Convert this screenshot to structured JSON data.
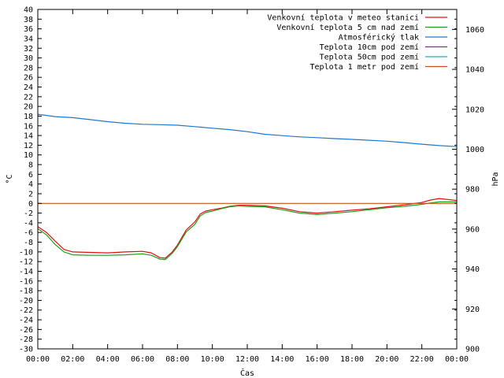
{
  "chart_data": {
    "type": "line",
    "title": "",
    "xlabel": "Čas",
    "ylabel": "°C",
    "y2label": "hPa",
    "x_ticks": [
      "00:00",
      "02:00",
      "04:00",
      "06:00",
      "08:00",
      "10:00",
      "12:00",
      "14:00",
      "16:00",
      "18:00",
      "20:00",
      "22:00",
      "00:00"
    ],
    "x_range_hours": [
      0,
      24
    ],
    "ylim": [
      -30,
      40
    ],
    "y_step": 2,
    "y2lim": [
      900,
      1070
    ],
    "y2_ticks": [
      900,
      920,
      940,
      960,
      980,
      1000,
      1020,
      1040,
      1060
    ],
    "grid": false,
    "legend_position": "top-right",
    "series": [
      {
        "name": "Venkovní teplota v meteo stanici",
        "color": "#e01010",
        "axis": "y1",
        "points": [
          [
            0,
            -4.8
          ],
          [
            0.5,
            -6
          ],
          [
            1,
            -7.8
          ],
          [
            1.5,
            -9.5
          ],
          [
            2,
            -10
          ],
          [
            3,
            -10.1
          ],
          [
            4,
            -10.2
          ],
          [
            5,
            -10
          ],
          [
            6,
            -9.9
          ],
          [
            6.5,
            -10.2
          ],
          [
            7,
            -11.2
          ],
          [
            7.3,
            -11.3
          ],
          [
            7.7,
            -10
          ],
          [
            8,
            -8.6
          ],
          [
            8.5,
            -5.5
          ],
          [
            9,
            -3.8
          ],
          [
            9.3,
            -2.2
          ],
          [
            9.6,
            -1.6
          ],
          [
            10,
            -1.3
          ],
          [
            10.5,
            -1
          ],
          [
            11,
            -0.6
          ],
          [
            11.5,
            -0.4
          ],
          [
            12,
            -0.4
          ],
          [
            13,
            -0.5
          ],
          [
            14,
            -1
          ],
          [
            15,
            -1.7
          ],
          [
            16,
            -2
          ],
          [
            17,
            -1.7
          ],
          [
            18,
            -1.4
          ],
          [
            19,
            -1.1
          ],
          [
            20,
            -0.7
          ],
          [
            21,
            -0.3
          ],
          [
            22,
            0.2
          ],
          [
            22.5,
            0.7
          ],
          [
            23,
            1
          ],
          [
            24,
            0.6
          ]
        ]
      },
      {
        "name": "Venkovní teplota 5 cm nad zemí",
        "color": "#1a9e1a",
        "axis": "y1",
        "points": [
          [
            0,
            -5.2
          ],
          [
            0.5,
            -6.5
          ],
          [
            1,
            -8.5
          ],
          [
            1.5,
            -10
          ],
          [
            2,
            -10.6
          ],
          [
            3,
            -10.7
          ],
          [
            4,
            -10.7
          ],
          [
            5,
            -10.6
          ],
          [
            6,
            -10.4
          ],
          [
            6.5,
            -10.7
          ],
          [
            7,
            -11.5
          ],
          [
            7.3,
            -11.6
          ],
          [
            7.7,
            -10.3
          ],
          [
            8,
            -8.9
          ],
          [
            8.5,
            -5.9
          ],
          [
            9,
            -4.3
          ],
          [
            9.3,
            -2.6
          ],
          [
            9.6,
            -1.9
          ],
          [
            10,
            -1.6
          ],
          [
            10.5,
            -1.1
          ],
          [
            11,
            -0.7
          ],
          [
            11.5,
            -0.5
          ],
          [
            12,
            -0.6
          ],
          [
            13,
            -0.7
          ],
          [
            14,
            -1.3
          ],
          [
            15,
            -2
          ],
          [
            16,
            -2.3
          ],
          [
            17,
            -2
          ],
          [
            18,
            -1.7
          ],
          [
            19,
            -1.3
          ],
          [
            20,
            -0.9
          ],
          [
            21,
            -0.6
          ],
          [
            22,
            -0.2
          ],
          [
            22.5,
            0.1
          ],
          [
            23,
            0.3
          ],
          [
            24,
            0.3
          ]
        ]
      },
      {
        "name": "Atmosférický tlak",
        "color": "#1f78d0",
        "axis": "y2",
        "points": [
          [
            0,
            1017.5
          ],
          [
            1,
            1016.3
          ],
          [
            2,
            1015.8
          ],
          [
            3,
            1014.8
          ],
          [
            4,
            1013.8
          ],
          [
            5,
            1013
          ],
          [
            6,
            1012.5
          ],
          [
            7,
            1012.3
          ],
          [
            8,
            1012
          ],
          [
            9,
            1011.3
          ],
          [
            10,
            1010.5
          ],
          [
            11,
            1009.8
          ],
          [
            12,
            1008.8
          ],
          [
            13,
            1007.5
          ],
          [
            14,
            1006.8
          ],
          [
            15,
            1006.2
          ],
          [
            16,
            1005.8
          ],
          [
            17,
            1005.3
          ],
          [
            18,
            1004.9
          ],
          [
            19,
            1004.5
          ],
          [
            20,
            1004
          ],
          [
            21,
            1003.3
          ],
          [
            22,
            1002.5
          ],
          [
            23,
            1001.8
          ],
          [
            24,
            1001.3
          ]
        ]
      },
      {
        "name": "Teplota 10cm pod zemí",
        "color": "#9a1ab0",
        "axis": "y1",
        "points": []
      },
      {
        "name": "Teplota 50cm pod zemí",
        "color": "#20b0b0",
        "axis": "y1",
        "points": []
      },
      {
        "name": "Teplota 1 metr pod zemí",
        "color": "#c8501a",
        "axis": "y1",
        "points": [
          [
            0,
            0
          ],
          [
            24,
            0
          ]
        ]
      }
    ]
  }
}
